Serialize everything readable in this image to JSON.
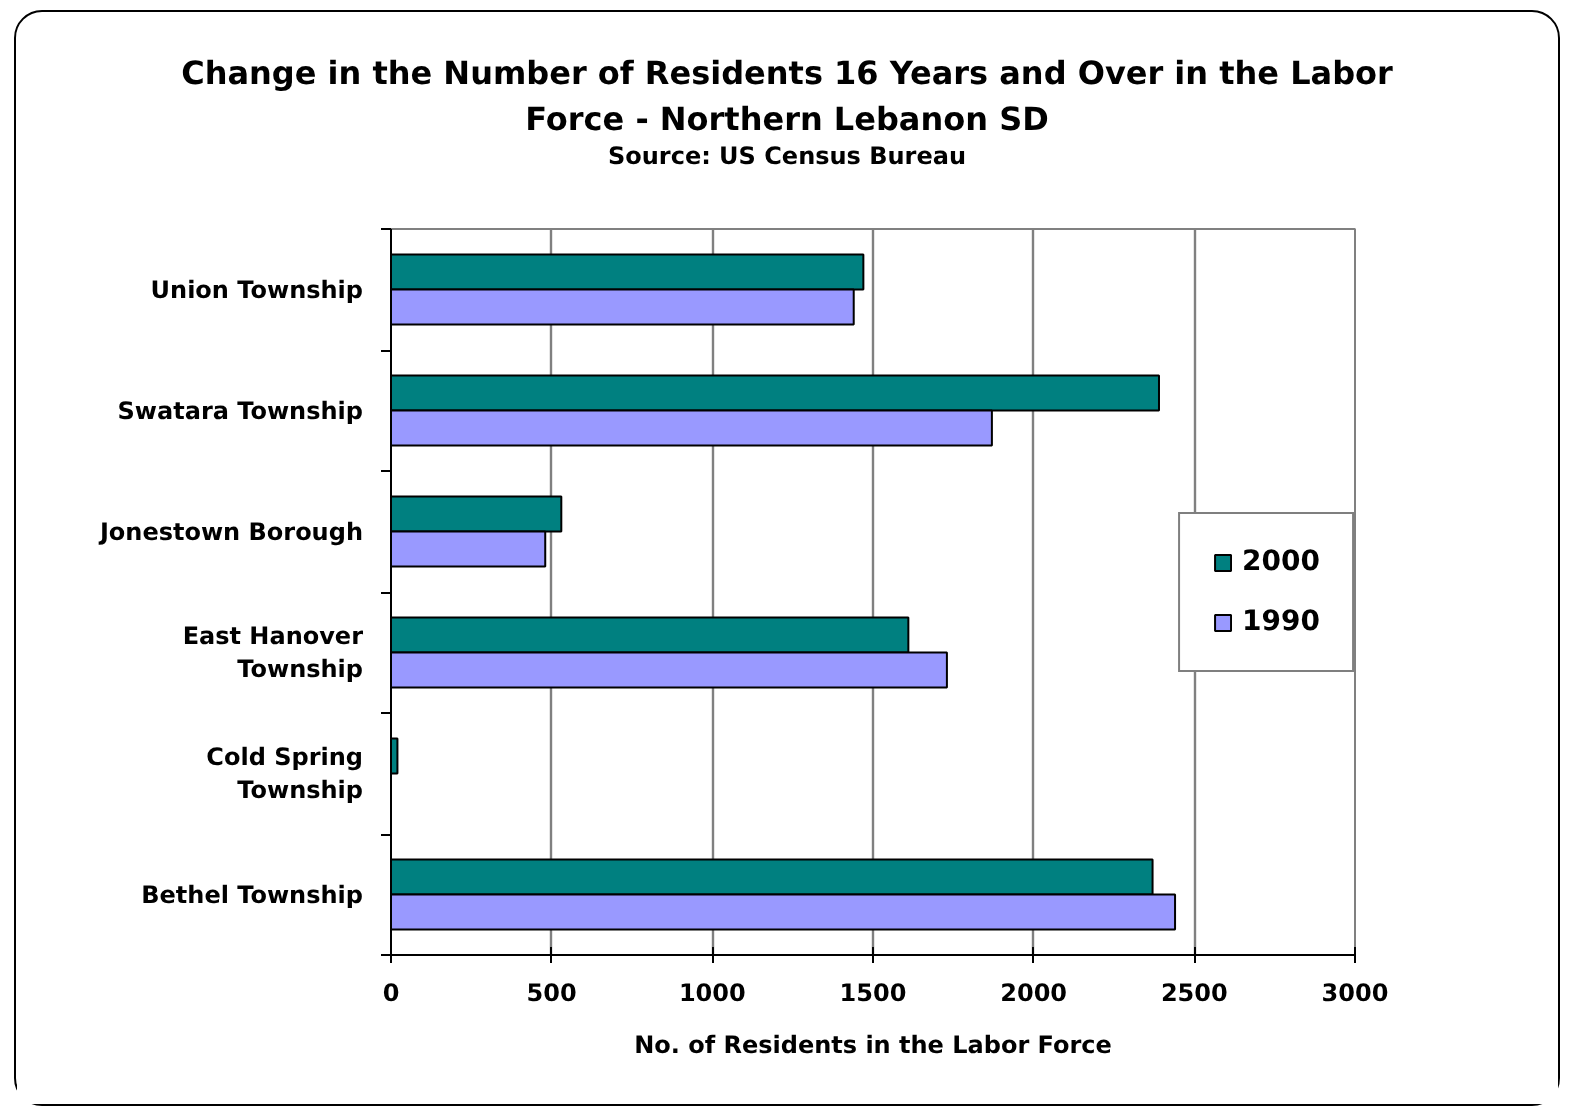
{
  "chart_data": {
    "type": "bar",
    "orientation": "horizontal",
    "title": "Change in the Number of Residents 16 Years and Over in the Labor Force - Northern Lebanon SD",
    "annotations": [
      "Source: US Census Bureau"
    ],
    "xlabel": "No. of Residents in the Labor Force",
    "categories": [
      "Union Township",
      "Swatara Township",
      "Jonestown Borough",
      "East Hanover Township",
      "Cold Spring Township",
      "Bethel Township"
    ],
    "series": [
      {
        "name": "2000",
        "color": "#008080",
        "values": [
          1470,
          2390,
          530,
          1610,
          20,
          2370
        ]
      },
      {
        "name": "1990",
        "color": "#9999ff",
        "values": [
          1440,
          1870,
          480,
          1730,
          null,
          2440
        ]
      }
    ],
    "xlim": [
      0,
      3000
    ],
    "xticks": [
      0,
      500,
      1000,
      1500,
      2000,
      2500,
      3000
    ],
    "grid": "x",
    "legend": "right"
  }
}
